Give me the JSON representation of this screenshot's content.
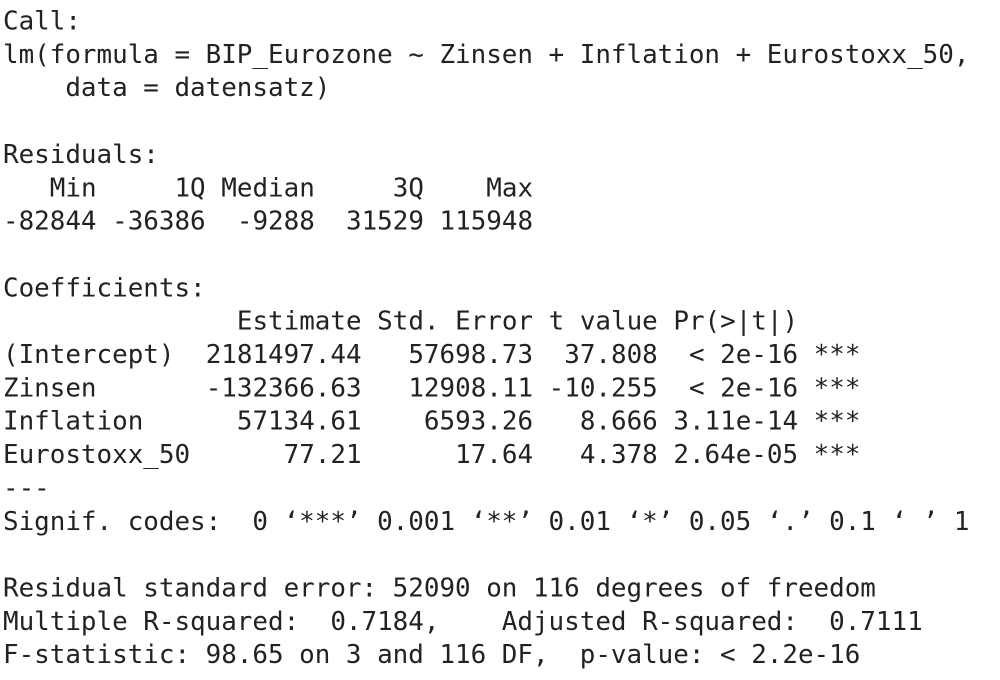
{
  "call": {
    "label": "Call:",
    "lines": [
      "lm(formula = BIP_Eurozone ~ Zinsen + Inflation + Eurostoxx_50,",
      "    data = datensatz)"
    ]
  },
  "residuals": {
    "label": "Residuals:",
    "headers": [
      "Min",
      "1Q",
      "Median",
      "3Q",
      "Max"
    ],
    "values": [
      "-82844",
      "-36386",
      "-9288",
      "31529",
      "115948"
    ]
  },
  "coefficients": {
    "label": "Coefficients:",
    "headers": [
      "Estimate",
      "Std. Error",
      "t value",
      "Pr(>|t|)"
    ],
    "rows": [
      {
        "name": "(Intercept)",
        "cells": [
          "2181497.44",
          "57698.73",
          "37.808",
          "< 2e-16"
        ],
        "signif": "***"
      },
      {
        "name": "Zinsen",
        "cells": [
          "-132366.63",
          "12908.11",
          "-10.255",
          "< 2e-16"
        ],
        "signif": "***"
      },
      {
        "name": "Inflation",
        "cells": [
          "57134.61",
          "6593.26",
          "8.666",
          "3.11e-14"
        ],
        "signif": "***"
      },
      {
        "name": "Eurostoxx_50",
        "cells": [
          "77.21",
          "17.64",
          "4.378",
          "2.64e-05"
        ],
        "signif": "***"
      }
    ]
  },
  "separator": "---",
  "signif_codes": "Signif. codes:  0 ‘***’ 0.001 ‘**’ 0.01 ‘*’ 0.05 ‘.’ 0.1 ‘ ’ 1",
  "summary": [
    "Residual standard error: 52090 on 116 degrees of freedom",
    "Multiple R-squared:  0.7184,    Adjusted R-squared:  0.7111",
    "F-statistic: 98.65 on 3 and 116 DF,  p-value: < 2.2e-16"
  ]
}
